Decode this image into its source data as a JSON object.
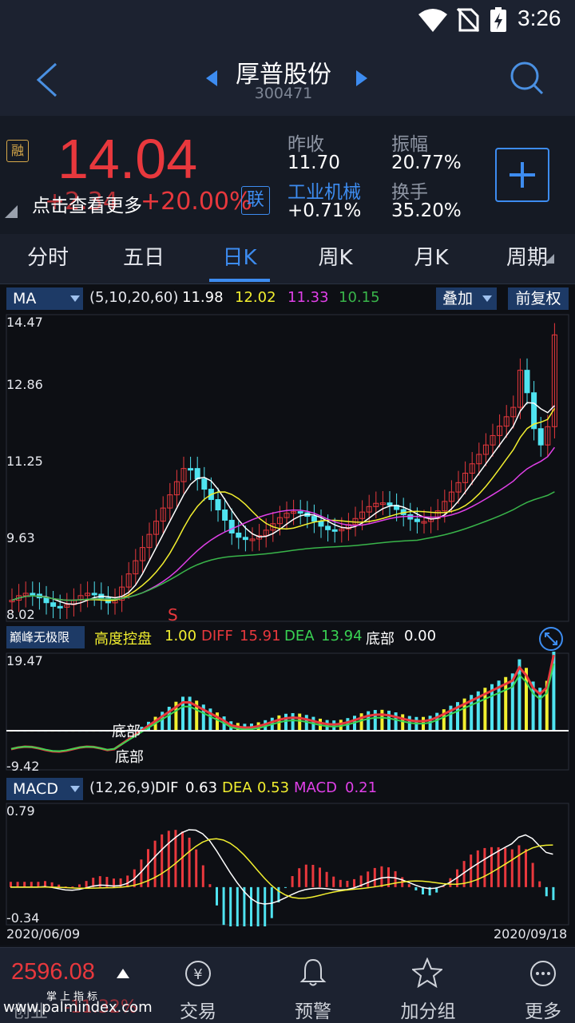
{
  "status": {
    "time": "3:26"
  },
  "header": {
    "title": "厚普股份",
    "code": "300471"
  },
  "quote": {
    "rong_badge": "融",
    "price": "14.04",
    "change": "+2.34",
    "change_pct": "+20.00%",
    "overlay_text": "点击查看更多",
    "lian_badge": "联",
    "prev_close_label": "昨收",
    "prev_close": "11.70",
    "amplitude_label": "振幅",
    "amplitude": "20.77%",
    "industry_label": "工业机械",
    "industry_change": "+0.71%",
    "turnover_label": "换手",
    "turnover": "35.20%"
  },
  "tabs": [
    {
      "label": "分时"
    },
    {
      "label": "五日"
    },
    {
      "label": "日K"
    },
    {
      "label": "周K"
    },
    {
      "label": "月K"
    },
    {
      "label": "周期"
    }
  ],
  "ma_bar": {
    "selector": "MA",
    "params": "(5,10,20,60)",
    "v5": "11.98",
    "v10": "12.02",
    "v20": "11.33",
    "v60": "10.15",
    "overlay_btn": "叠加",
    "fq_btn": "前复权"
  },
  "kline": {
    "y_labels": [
      "14.47",
      "12.86",
      "11.25",
      "9.63",
      "8.02"
    ],
    "signal": "S"
  },
  "indicator": {
    "selector": "巅峰无极限",
    "name1": "高度控盘",
    "val1": "1.00",
    "diff_label": "DIFF",
    "diff": "15.91",
    "dea_label": "DEA",
    "dea": "13.94",
    "bottom_label": "底部",
    "bottom": "0.00",
    "y_top": "19.47",
    "y_bottom": "-9.42",
    "mark": "底部"
  },
  "macd": {
    "selector": "MACD",
    "params": "(12,26,9)",
    "dif_label": "DIF",
    "dif": "0.63",
    "dea_label": "DEA",
    "dea": "0.53",
    "macd_label": "MACD",
    "macd": "0.21",
    "y_top": "0.79",
    "y_bottom": "-0.34",
    "date_start": "2020/06/09",
    "date_end": "2020/09/18"
  },
  "bottom_nav": {
    "index_value": "2596.08",
    "index_name": "创业",
    "index_change": "-11.32%",
    "watermark_small": "掌上指标",
    "watermark": "www.palmindex.com",
    "items": [
      {
        "label": "交易"
      },
      {
        "label": "预警"
      },
      {
        "label": "加分组"
      },
      {
        "label": "更多"
      }
    ]
  },
  "colors": {
    "up": "#e8383d",
    "down": "#4fe3f0",
    "accent": "#3d8cf0",
    "ma5": "#ffffff",
    "ma10": "#f2ef2f",
    "ma20": "#e040e8",
    "ma60": "#39b54a"
  }
}
